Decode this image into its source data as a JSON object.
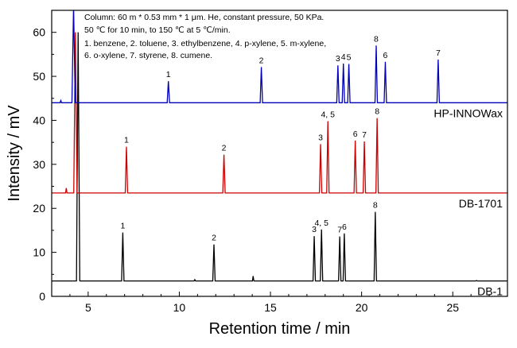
{
  "chart_data": {
    "type": "line",
    "title": "",
    "xlabel": "Retention time / min",
    "ylabel": "Intensity / mV",
    "xlim": [
      3,
      28
    ],
    "ylim": [
      0,
      65
    ],
    "xticks": [
      5,
      10,
      15,
      20,
      25
    ],
    "yticks": [
      0,
      10,
      20,
      30,
      40,
      50,
      60
    ],
    "grid": false,
    "annotation_lines": [
      "Column: 60 m * 0.53 mm * 1 μm. He, constant pressure, 50 KPa.",
      "50 ℃ for 10 min, to 150 ℃ at 5 ℃/min.",
      "1. benzene, 2. toluene, 3. ethylbenzene, 4. p-xylene, 5. m-xylene,",
      "6. o-xylene, 7. styrene, 8. cumene."
    ],
    "series": [
      {
        "name": "DB-1",
        "color": "#000000",
        "baseline": 3.5,
        "solvent_peak": {
          "x": 4.45,
          "y": 60
        },
        "minor_peaks": [
          {
            "x": 10.85,
            "y": 3.8
          },
          {
            "x": 14.05,
            "y": 4.6
          },
          {
            "x": 26.3,
            "y": 3.6
          }
        ],
        "peaks": [
          {
            "label": "1",
            "x": 6.9,
            "y": 14.5
          },
          {
            "label": "2",
            "x": 11.9,
            "y": 11.8
          },
          {
            "label": "3",
            "x": 17.4,
            "y": 13.7
          },
          {
            "label": "4, 5",
            "x": 17.8,
            "y": 15.2
          },
          {
            "label": "7",
            "x": 18.8,
            "y": 13.6
          },
          {
            "label": "6",
            "x": 19.05,
            "y": 14.3
          },
          {
            "label": "8",
            "x": 20.75,
            "y": 19.2
          }
        ]
      },
      {
        "name": "DB-1701",
        "color": "#cc0000",
        "baseline": 23.5,
        "solvent_peak": {
          "x": 4.3,
          "y": 60
        },
        "minor_peaks": [
          {
            "x": 3.8,
            "y": 24.6
          }
        ],
        "peaks": [
          {
            "label": "1",
            "x": 7.1,
            "y": 34.0
          },
          {
            "label": "2",
            "x": 12.45,
            "y": 32.2
          },
          {
            "label": "3",
            "x": 17.75,
            "y": 34.6
          },
          {
            "label": "4, 5",
            "x": 18.15,
            "y": 39.8
          },
          {
            "label": "6",
            "x": 19.65,
            "y": 35.4
          },
          {
            "label": "7",
            "x": 20.15,
            "y": 35.2
          },
          {
            "label": "8",
            "x": 20.85,
            "y": 40.5
          }
        ]
      },
      {
        "name": "HP-INNOWax",
        "color": "#0000bb",
        "baseline": 44.0,
        "solvent_peak": {
          "x": 4.2,
          "y": 66
        },
        "minor_peaks": [
          {
            "x": 3.5,
            "y": 44.5
          }
        ],
        "peaks": [
          {
            "label": "1",
            "x": 9.4,
            "y": 48.9
          },
          {
            "label": "2",
            "x": 14.5,
            "y": 52.1
          },
          {
            "label": "3",
            "x": 18.7,
            "y": 52.5
          },
          {
            "label": "4",
            "x": 19.0,
            "y": 52.9
          },
          {
            "label": "5",
            "x": 19.3,
            "y": 52.8
          },
          {
            "label": "8",
            "x": 20.8,
            "y": 57.0
          },
          {
            "label": "6",
            "x": 21.3,
            "y": 53.3
          },
          {
            "label": "7",
            "x": 24.2,
            "y": 53.8
          }
        ]
      }
    ]
  }
}
